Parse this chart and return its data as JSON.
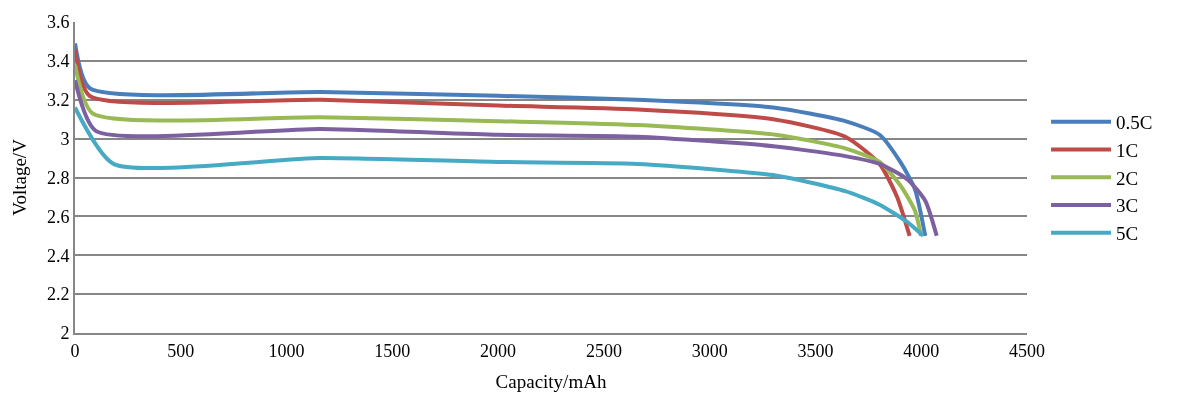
{
  "chart_data": {
    "type": "line",
    "xlabel": "Capacity/mAh",
    "ylabel": "Voltage/V",
    "xlim": [
      0,
      4500
    ],
    "xticks": [
      0,
      500,
      1000,
      1500,
      2000,
      2500,
      3000,
      3500,
      4000,
      4500
    ],
    "ylim": [
      2,
      3.6
    ],
    "yticks": [
      2,
      {
        "value": 2.2,
        "label": "2.2"
      },
      {
        "value": 2.4,
        "label": "2.4"
      },
      {
        "value": 2.6,
        "label": "2.6"
      },
      {
        "value": 2.8,
        "label": "2.8"
      },
      3,
      {
        "value": 3.2,
        "label": "3.2"
      },
      {
        "value": 3.4,
        "label": "3.4"
      },
      {
        "value": 3.6,
        "label": "3.6"
      }
    ],
    "grid": "y",
    "legend": "right",
    "marker": "none",
    "line_style": "solid",
    "series": [
      {
        "name": "0.5C",
        "color": "#4a7ebb",
        "x": [
          0,
          69,
          1163,
          2000,
          2660,
          3300,
          3641,
          3803,
          3901,
          3970,
          4019
        ],
        "values": [
          3.49,
          3.26,
          3.24,
          3.22,
          3.2,
          3.16,
          3.09,
          3.02,
          2.88,
          2.74,
          2.5
        ]
      },
      {
        "name": "1C",
        "color": "#be4b48",
        "x": [
          0,
          69,
          1163,
          2000,
          2660,
          3300,
          3641,
          3803,
          3886,
          3945
        ],
        "values": [
          3.46,
          3.22,
          3.2,
          3.17,
          3.15,
          3.1,
          3.01,
          2.87,
          2.7,
          2.5
        ]
      },
      {
        "name": "2C",
        "color": "#98b954",
        "x": [
          0,
          83,
          1163,
          2000,
          2660,
          3312,
          3641,
          3803,
          3901,
          3970,
          3999
        ],
        "values": [
          3.38,
          3.13,
          3.11,
          3.09,
          3.07,
          3.02,
          2.95,
          2.88,
          2.76,
          2.63,
          2.5
        ]
      },
      {
        "name": "3C",
        "color": "#7d60a0",
        "x": [
          0,
          98,
          1163,
          2000,
          2660,
          3312,
          3641,
          3803,
          3935,
          4019,
          4073
        ],
        "values": [
          3.3,
          3.04,
          3.05,
          3.02,
          3.01,
          2.96,
          2.91,
          2.87,
          2.79,
          2.68,
          2.5
        ]
      },
      {
        "name": "5C",
        "color": "#46aac5",
        "x": [
          0,
          182,
          1163,
          2000,
          2660,
          3312,
          3641,
          3803,
          3935,
          4009
        ],
        "values": [
          3.16,
          2.87,
          2.9,
          2.88,
          2.87,
          2.81,
          2.73,
          2.66,
          2.57,
          2.5
        ]
      }
    ]
  }
}
